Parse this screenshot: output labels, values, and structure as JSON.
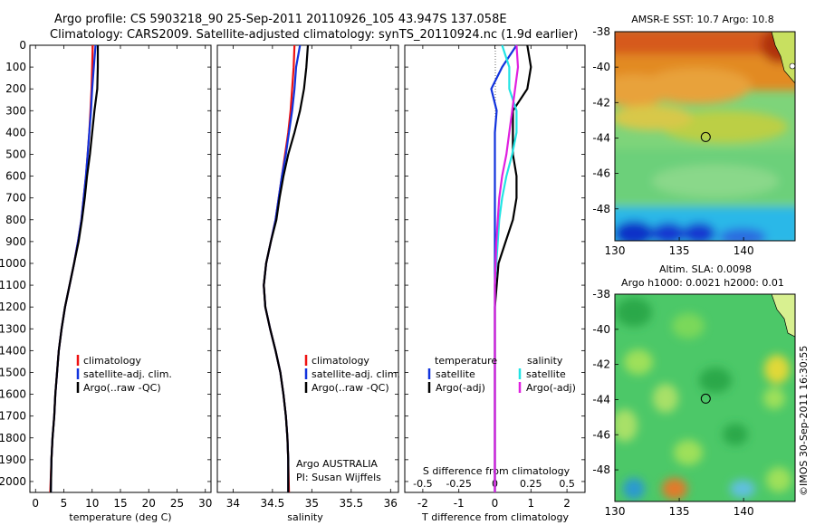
{
  "header": {
    "line1": "Argo profile: CS 5903218_90 25-Sep-2011 20110926_105 43.947S 137.058E",
    "line2": "Climatology: CARS2009. Satellite-adjusted climatology: synTS_20110924.nc (1.9d earlier)"
  },
  "colors": {
    "clim": "#ee1111",
    "sat": "#1133dd",
    "argo": "#000000",
    "sal_sat": "#22e4e4",
    "sal_argo": "#e020e0"
  },
  "chart_data": [
    {
      "type": "line",
      "xlabel": "temperature (deg C)",
      "xlim": [
        -1,
        31
      ],
      "ylim": [
        0,
        2050
      ],
      "xticks": [
        0,
        5,
        10,
        15,
        20,
        25,
        30
      ],
      "yticks": [
        0,
        100,
        200,
        300,
        400,
        500,
        600,
        700,
        800,
        900,
        1000,
        1100,
        1200,
        1300,
        1400,
        1500,
        1600,
        1700,
        1800,
        1900,
        2000
      ],
      "legend": [
        "climatology",
        "satellite-adj. clim.",
        "Argo(..raw -QC)"
      ],
      "legend_position": "bottom-right",
      "series": [
        {
          "name": "climatology",
          "color": "#ee1111",
          "x": [
            10.1,
            10.0,
            9.9,
            9.7,
            9.5,
            9.2,
            8.9,
            8.5,
            8.1,
            7.5,
            6.8,
            6.0,
            5.2,
            4.6,
            4.1,
            3.8,
            3.5,
            3.3,
            3.0,
            2.8,
            2.6
          ],
          "y": [
            0,
            100,
            200,
            300,
            400,
            500,
            600,
            700,
            800,
            900,
            1000,
            1100,
            1200,
            1300,
            1400,
            1500,
            1600,
            1700,
            1800,
            1900,
            2050
          ]
        },
        {
          "name": "satellite-adj. clim.",
          "color": "#1133dd",
          "x": [
            10.6,
            10.3,
            10.0,
            9.8,
            9.5,
            9.2,
            8.9,
            8.5,
            8.1,
            7.5,
            6.8,
            6.0,
            5.2,
            4.6,
            4.1,
            3.8,
            3.5,
            3.3,
            3.0,
            2.8,
            2.7
          ],
          "y": [
            0,
            100,
            200,
            300,
            400,
            500,
            600,
            700,
            800,
            900,
            1000,
            1100,
            1200,
            1300,
            1400,
            1500,
            1600,
            1700,
            1800,
            1900,
            2050
          ]
        },
        {
          "name": "Argo(..raw -QC)",
          "color": "#000000",
          "x": [
            11.0,
            11.0,
            10.9,
            10.4,
            10.0,
            9.6,
            9.1,
            8.7,
            8.2,
            7.6,
            6.8,
            6.0,
            5.2,
            4.6,
            4.1,
            3.8,
            3.5,
            3.3,
            3.0,
            2.8,
            2.7
          ],
          "y": [
            0,
            100,
            200,
            300,
            400,
            500,
            600,
            700,
            800,
            900,
            1000,
            1100,
            1200,
            1300,
            1400,
            1500,
            1600,
            1700,
            1800,
            1900,
            2050
          ]
        }
      ]
    },
    {
      "type": "line",
      "xlabel": "salinity",
      "xlim": [
        33.8,
        36.1
      ],
      "ylim": [
        0,
        2050
      ],
      "xticks": [
        34,
        34.5,
        35,
        35.5,
        36
      ],
      "legend": [
        "climatology",
        "satellite-adj. clim.",
        "Argo(..raw -QC)"
      ],
      "legend_position": "bottom-right",
      "annotations": [
        "Argo AUSTRALIA",
        "PI: Susan Wijffels"
      ],
      "series": [
        {
          "name": "climatology",
          "color": "#ee1111",
          "x": [
            34.78,
            34.77,
            34.75,
            34.73,
            34.7,
            34.66,
            34.62,
            34.58,
            34.54,
            34.48,
            34.42,
            34.39,
            34.41,
            34.47,
            34.54,
            34.6,
            34.64,
            34.67,
            34.69,
            34.7,
            34.71
          ],
          "y": [
            0,
            100,
            200,
            300,
            400,
            500,
            600,
            700,
            800,
            900,
            1000,
            1100,
            1200,
            1300,
            1400,
            1500,
            1600,
            1700,
            1800,
            1900,
            2050
          ]
        },
        {
          "name": "satellite-adj. clim.",
          "color": "#1133dd",
          "x": [
            34.85,
            34.8,
            34.78,
            34.75,
            34.71,
            34.67,
            34.62,
            34.58,
            34.54,
            34.48,
            34.42,
            34.39,
            34.41,
            34.47,
            34.54,
            34.6,
            34.64,
            34.67,
            34.69,
            34.7,
            34.7
          ],
          "y": [
            0,
            100,
            200,
            300,
            400,
            500,
            600,
            700,
            800,
            900,
            1000,
            1100,
            1200,
            1300,
            1400,
            1500,
            1600,
            1700,
            1800,
            1900,
            2050
          ]
        },
        {
          "name": "Argo(..raw -QC)",
          "color": "#000000",
          "x": [
            34.95,
            34.93,
            34.9,
            34.85,
            34.78,
            34.7,
            34.64,
            34.59,
            34.55,
            34.48,
            34.42,
            34.39,
            34.41,
            34.47,
            34.54,
            34.6,
            34.64,
            34.67,
            34.69,
            34.7,
            34.7
          ],
          "y": [
            0,
            100,
            200,
            300,
            400,
            500,
            600,
            700,
            800,
            900,
            1000,
            1100,
            1200,
            1300,
            1400,
            1500,
            1600,
            1700,
            1800,
            1900,
            2050
          ]
        }
      ]
    },
    {
      "type": "line",
      "xlabel": "T difference from climatology",
      "xlabel_top": "S difference from climatology",
      "xlim": [
        -2.5,
        2.5
      ],
      "ylim": [
        0,
        2050
      ],
      "xticks": [
        -2,
        -1,
        0,
        1,
        2
      ],
      "xticks_top": [
        -0.5,
        -0.25,
        0,
        0.25,
        0.5
      ],
      "legend_temperature": [
        "temperature",
        "satellite",
        "Argo(-adj)"
      ],
      "legend_salinity": [
        "salinity",
        "satellite",
        "Argo(-adj)"
      ],
      "legend_position": "bottom",
      "series": [
        {
          "name": "temperature satellite",
          "color": "#1133dd",
          "x": [
            0.6,
            0.2,
            -0.1,
            0.05,
            0,
            0,
            0,
            0,
            0,
            0,
            0,
            0,
            0,
            0,
            0,
            0,
            0,
            0,
            0,
            0,
            0
          ],
          "y": [
            0,
            100,
            200,
            300,
            400,
            500,
            600,
            700,
            800,
            900,
            1000,
            1100,
            1200,
            1300,
            1400,
            1500,
            1600,
            1700,
            1800,
            1900,
            2050
          ]
        },
        {
          "name": "temperature Argo(-adj)",
          "color": "#000000",
          "x": [
            0.9,
            1.0,
            0.9,
            0.5,
            0.5,
            0.5,
            0.6,
            0.6,
            0.5,
            0.3,
            0.1,
            0.05,
            0,
            0,
            0,
            0,
            0,
            0,
            0,
            0,
            0
          ],
          "y": [
            0,
            100,
            200,
            300,
            400,
            500,
            600,
            700,
            800,
            900,
            1000,
            1100,
            1200,
            1300,
            1400,
            1500,
            1600,
            1700,
            1800,
            1900,
            2050
          ]
        },
        {
          "name": "salinity satellite",
          "color": "#22e4e4",
          "x": [
            0.05,
            0.1,
            0.1,
            0.15,
            0.15,
            0.12,
            0.08,
            0.05,
            0.03,
            0.02,
            0.01,
            0,
            0,
            0,
            0,
            0,
            0,
            0,
            0,
            0,
            0
          ],
          "y": [
            0,
            100,
            200,
            300,
            400,
            500,
            600,
            700,
            800,
            900,
            1000,
            1100,
            1200,
            1300,
            1400,
            1500,
            1600,
            1700,
            1800,
            1900,
            2050
          ]
        },
        {
          "name": "salinity Argo(-adj)",
          "color": "#e020e0",
          "x": [
            0.15,
            0.16,
            0.14,
            0.12,
            0.1,
            0.08,
            0.05,
            0.03,
            0.02,
            0.01,
            0.005,
            0,
            0,
            0,
            0,
            0,
            0,
            0,
            0,
            0,
            0
          ],
          "y": [
            0,
            100,
            200,
            300,
            400,
            500,
            600,
            700,
            800,
            900,
            1000,
            1100,
            1200,
            1300,
            1400,
            1500,
            1600,
            1700,
            1800,
            1900,
            2050
          ]
        }
      ]
    },
    {
      "type": "heatmap",
      "title": "AMSR-E SST: 10.7 Argo: 10.8",
      "xlim": [
        130,
        144
      ],
      "ylim": [
        -49.8,
        -38
      ],
      "xticks": [
        130,
        135,
        140
      ],
      "yticks": [
        -38,
        -40,
        -42,
        -44,
        -46,
        -48
      ],
      "marker": {
        "lon": 137.058,
        "lat": -43.947
      }
    },
    {
      "type": "heatmap",
      "title": "Altim. SLA: 0.0098",
      "subtitle": "Argo h1000: 0.0021 h2000: 0.01",
      "xlim": [
        130,
        144
      ],
      "ylim": [
        -49.8,
        -38
      ],
      "xticks": [
        130,
        135,
        140
      ],
      "yticks": [
        -38,
        -40,
        -42,
        -44,
        -46,
        -48
      ],
      "marker": {
        "lon": 137.058,
        "lat": -43.947
      }
    }
  ],
  "footer": {
    "credit": "©IMOS 30-Sep-2011 16:30:55"
  }
}
